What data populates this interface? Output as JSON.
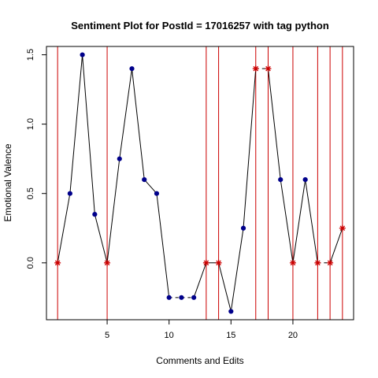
{
  "chart_data": {
    "type": "line",
    "title": "Sentiment Plot for PostId =  17016257  with tag  python",
    "xlabel": "Comments and Edits",
    "ylabel": "Emotional Valence",
    "xlim": [
      0.1,
      24.9
    ],
    "ylim": [
      -0.41,
      1.56
    ],
    "xticks": [
      5,
      10,
      15,
      20
    ],
    "yticks": [
      0.0,
      0.5,
      1.0,
      1.5
    ],
    "grid": false,
    "legend": "none",
    "line_color": "#000000",
    "point_color": "#00008b",
    "marker_color": "#cc0000",
    "vline_color": "#cc0000",
    "points": [
      {
        "x": 1,
        "y": 0.0,
        "marker": "star"
      },
      {
        "x": 2,
        "y": 0.5,
        "marker": "dot"
      },
      {
        "x": 3,
        "y": 1.5,
        "marker": "dot"
      },
      {
        "x": 4,
        "y": 0.35,
        "marker": "dot"
      },
      {
        "x": 5,
        "y": 0.0,
        "marker": "star"
      },
      {
        "x": 6,
        "y": 0.75,
        "marker": "dot"
      },
      {
        "x": 7,
        "y": 1.4,
        "marker": "dot"
      },
      {
        "x": 8,
        "y": 0.6,
        "marker": "dot"
      },
      {
        "x": 9,
        "y": 0.5,
        "marker": "dot"
      },
      {
        "x": 10,
        "y": -0.25,
        "marker": "dot"
      },
      {
        "x": 11,
        "y": -0.25,
        "marker": "dot"
      },
      {
        "x": 12,
        "y": -0.25,
        "marker": "dot"
      },
      {
        "x": 13,
        "y": 0.0,
        "marker": "star"
      },
      {
        "x": 14,
        "y": 0.0,
        "marker": "star"
      },
      {
        "x": 15,
        "y": -0.35,
        "marker": "dot"
      },
      {
        "x": 16,
        "y": 0.25,
        "marker": "dot"
      },
      {
        "x": 17,
        "y": 1.4,
        "marker": "star"
      },
      {
        "x": 18,
        "y": 1.4,
        "marker": "star"
      },
      {
        "x": 19,
        "y": 0.6,
        "marker": "dot"
      },
      {
        "x": 20,
        "y": 0.0,
        "marker": "star"
      },
      {
        "x": 21,
        "y": 0.6,
        "marker": "dot"
      },
      {
        "x": 22,
        "y": 0.0,
        "marker": "star"
      },
      {
        "x": 23,
        "y": 0.0,
        "marker": "star"
      },
      {
        "x": 24,
        "y": 0.25,
        "marker": "star"
      }
    ],
    "dashed_segments": [
      [
        10,
        11
      ],
      [
        11,
        12
      ],
      [
        17,
        18
      ],
      [
        22,
        23
      ]
    ],
    "vlines": [
      1,
      5,
      13,
      14,
      17,
      18,
      20,
      22,
      23,
      24
    ]
  }
}
